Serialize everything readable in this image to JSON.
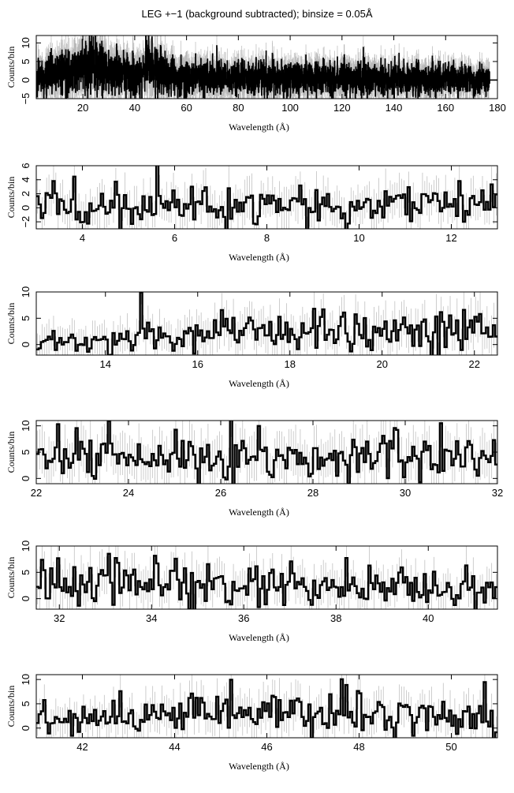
{
  "title": "LEG +−1 (background subtracted); binsize = 0.05Å",
  "colors": {
    "data": "#000000",
    "errorbars": "#b8b8b8",
    "frame": "#000000"
  },
  "chart_data": [
    {
      "type": "line",
      "title": "LEG +−1 (background subtracted); binsize = 0.05Å",
      "xlabel": "Wavelength (Å)",
      "ylabel": "Counts/bin",
      "xlim": [
        2,
        180
      ],
      "ylim": [
        -5,
        12
      ],
      "xticks": [
        20,
        40,
        60,
        80,
        100,
        120,
        140,
        160,
        180
      ],
      "yticks": [
        -5,
        0,
        5,
        10
      ],
      "trend": [
        [
          2,
          0.5
        ],
        [
          10,
          1.5
        ],
        [
          20,
          3.0
        ],
        [
          25,
          3.5
        ],
        [
          30,
          2.5
        ],
        [
          40,
          1.5
        ],
        [
          43,
          2.0
        ],
        [
          45,
          5.0
        ],
        [
          48,
          2.5
        ],
        [
          55,
          1.0
        ],
        [
          70,
          0.8
        ],
        [
          90,
          0.5
        ],
        [
          120,
          0.5
        ],
        [
          150,
          0.3
        ],
        [
          175,
          0.0
        ],
        [
          180,
          0.0
        ]
      ],
      "grid": false
    },
    {
      "type": "line",
      "xlabel": "Wavelength (Å)",
      "ylabel": "Counts/bin",
      "xlim": [
        3,
        13
      ],
      "ylim": [
        -3,
        6
      ],
      "xticks": [
        4,
        6,
        8,
        10,
        12
      ],
      "yticks": [
        -2,
        0,
        2,
        4,
        6
      ],
      "trend": [
        [
          3,
          0.3
        ],
        [
          13,
          0.5
        ]
      ],
      "grid": false
    },
    {
      "type": "line",
      "xlabel": "Wavelength (Å)",
      "ylabel": "Counts/bin",
      "xlim": [
        12.5,
        22.5
      ],
      "ylim": [
        -2,
        10
      ],
      "xticks": [
        14,
        16,
        18,
        20,
        22
      ],
      "yticks": [
        0,
        5,
        10
      ],
      "trend": [
        [
          12.5,
          0.8
        ],
        [
          15,
          1.2
        ],
        [
          17,
          2.0
        ],
        [
          20,
          2.5
        ],
        [
          22.5,
          3.0
        ]
      ],
      "grid": false
    },
    {
      "type": "line",
      "xlabel": "Wavelength (Å)",
      "ylabel": "Counts/bin",
      "xlim": [
        22,
        32
      ],
      "ylim": [
        -1,
        11
      ],
      "xticks": [
        22,
        24,
        26,
        28,
        30,
        32
      ],
      "yticks": [
        0,
        5,
        10
      ],
      "trend": [
        [
          22,
          3.5
        ],
        [
          26,
          4.0
        ],
        [
          32,
          3.5
        ]
      ],
      "grid": false
    },
    {
      "type": "line",
      "xlabel": "Wavelength (Å)",
      "ylabel": "Counts/bin",
      "xlim": [
        31.5,
        41.5
      ],
      "ylim": [
        -2,
        10
      ],
      "xticks": [
        32,
        34,
        36,
        38,
        40
      ],
      "yticks": [
        0,
        5,
        10
      ],
      "trend": [
        [
          31.5,
          4.0
        ],
        [
          34,
          3.0
        ],
        [
          38,
          2.0
        ],
        [
          41.5,
          1.5
        ]
      ],
      "grid": false
    },
    {
      "type": "line",
      "xlabel": "Wavelength (Å)",
      "ylabel": "Counts/bin",
      "xlim": [
        41,
        51
      ],
      "ylim": [
        -2,
        11
      ],
      "xticks": [
        42,
        44,
        46,
        48,
        50
      ],
      "yticks": [
        0,
        5,
        10
      ],
      "trend": [
        [
          41,
          1.5
        ],
        [
          43,
          2.0
        ],
        [
          45,
          3.5
        ],
        [
          48,
          3.0
        ],
        [
          51,
          2.0
        ]
      ],
      "grid": false
    }
  ]
}
